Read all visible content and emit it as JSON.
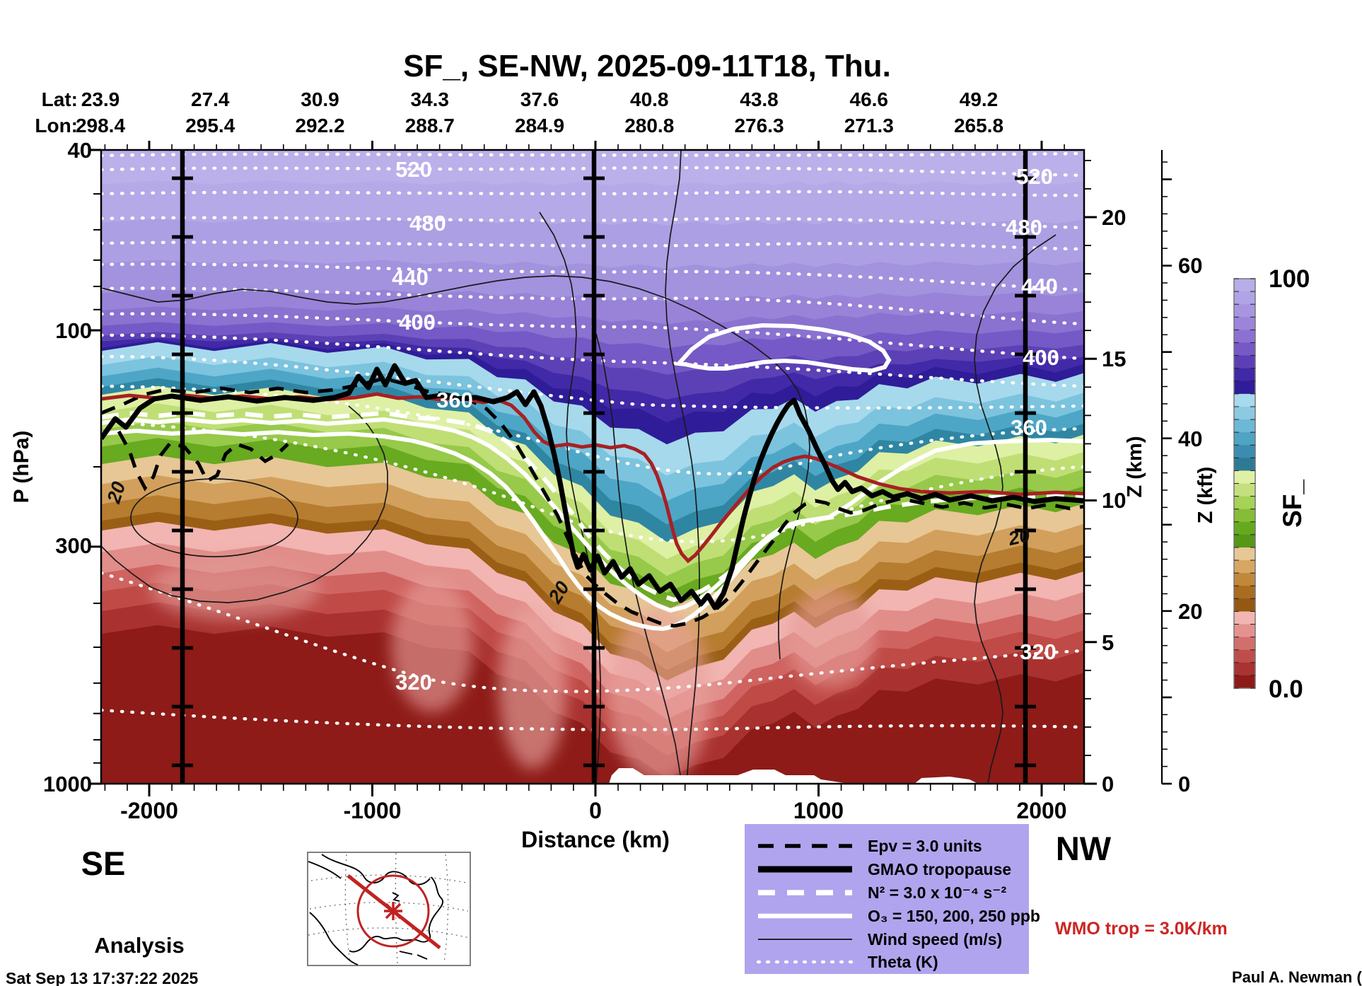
{
  "chart_data": {
    "type": "filled-contour-cross-section",
    "title": "SF_, SE-NW, 2025-09-11T18, Thu.",
    "field": "SF_",
    "transect": "SE-NW",
    "valid_time": "2025-09-11T18",
    "weekday": "Thu.",
    "run_label": "Analysis",
    "corner_labels": {
      "left": "SE",
      "right": "NW"
    },
    "x_axis": {
      "label": "Distance (km)",
      "tick_labels": [
        "-2000",
        "-1000",
        "0",
        "1000",
        "2000"
      ],
      "range_km": [
        -2230,
        2230
      ]
    },
    "y_axis_pressure": {
      "label": "P (hPa)",
      "scale": "log",
      "tick_labels": [
        "40",
        "100",
        "300",
        "1000"
      ],
      "range_hpa": [
        40,
        1000
      ]
    },
    "y_axis_km": {
      "label": "Z (km)",
      "tick_labels": [
        "20",
        "15",
        "10",
        "5",
        "0"
      ]
    },
    "y_axis_kft": {
      "label": "Z (kft)",
      "tick_labels": [
        "60",
        "40",
        "20",
        "0"
      ]
    },
    "top_axis": {
      "lat_label": "Lat:",
      "lon_label": "Lon:",
      "lat": [
        "23.9",
        "27.4",
        "30.9",
        "34.3",
        "37.6",
        "40.8",
        "43.8",
        "46.6",
        "49.2"
      ],
      "lon": [
        "298.4",
        "295.4",
        "292.2",
        "288.7",
        "284.9",
        "280.8",
        "276.3",
        "271.3",
        "265.8"
      ]
    },
    "colorbar": {
      "label": "SF_",
      "max_label": "100",
      "min_label": "0.0",
      "colors": [
        "#b9ade9",
        "#b0a3e6",
        "#a795e1",
        "#9b85da",
        "#8b71d2",
        "#7659c6",
        "#5c3fb5",
        "#4028a6",
        "#2f1c98",
        "#a9d9ec",
        "#8ccae2",
        "#6db8d5",
        "#4fa3c4",
        "#3a8db0",
        "#2e7a95",
        "#dff0a6",
        "#c4e07e",
        "#a6d256",
        "#86bd36",
        "#66a91f",
        "#559717",
        "#e7c795",
        "#d6a763",
        "#c1883c",
        "#a96c20",
        "#935812",
        "#f2b5b1",
        "#e4928e",
        "#d26f6c",
        "#bd4e4b",
        "#a83331",
        "#8e1b18"
      ]
    },
    "contour_labels": {
      "theta": [
        "520",
        "480",
        "440",
        "400",
        "360",
        "320"
      ],
      "wind": "20"
    },
    "legend": {
      "bg": "#b1a4ee",
      "items": [
        {
          "name": "epv",
          "label": "Epv = 3.0 units",
          "style": "black-dashed"
        },
        {
          "name": "gmao-tropopause",
          "label": "GMAO tropopause",
          "style": "black-thick"
        },
        {
          "name": "n2",
          "label": "N² = 3.0 x 10⁻⁴ s⁻²",
          "style": "white-dashed"
        },
        {
          "name": "o3",
          "label": "O₃ = 150, 200, 250 ppb",
          "style": "white-solid"
        },
        {
          "name": "wind",
          "label": "Wind speed (m/s)",
          "style": "black-thin"
        },
        {
          "name": "theta",
          "label": "Theta (K)",
          "style": "white-dotted"
        }
      ]
    },
    "wmo_note": "WMO trop = 3.0K/km",
    "wmo_color": "#cc2624",
    "footer": {
      "timestamp": "Sat Sep 13 17:37:22 2025",
      "credit": "Paul A. Newman (NASA"
    }
  }
}
